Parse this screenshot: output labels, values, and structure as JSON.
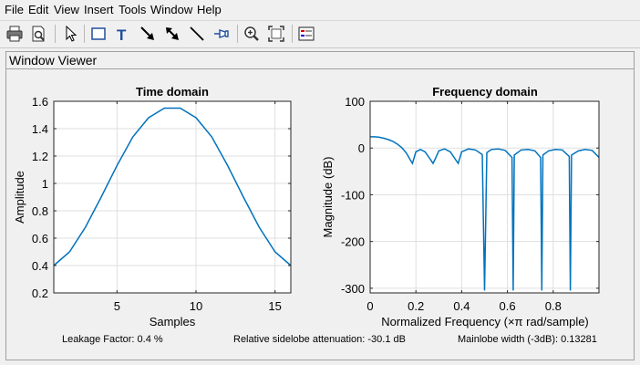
{
  "menu": {
    "items": [
      "File",
      "Edit",
      "View",
      "Insert",
      "Tools",
      "Window",
      "Help"
    ]
  },
  "toolbar": {
    "icons": [
      "print-icon",
      "print-preview-icon",
      "pointer-icon",
      "insert-rectangle-icon",
      "insert-text-icon",
      "insert-arrow-icon",
      "insert-double-arrow-icon",
      "insert-line-icon",
      "pin-icon",
      "zoom-in-icon",
      "fit-view-icon",
      "legend-icon"
    ]
  },
  "panel": {
    "title": "Window Viewer"
  },
  "time_plot": {
    "title": "Time domain",
    "xlabel": "Samples",
    "ylabel": "Amplitude",
    "xticks": [
      "5",
      "10",
      "15"
    ],
    "yticks": [
      "0.2",
      "0.4",
      "0.6",
      "0.8",
      "1",
      "1.2",
      "1.4",
      "1.6"
    ]
  },
  "freq_plot": {
    "title": "Frequency domain",
    "xlabel": "Normalized Frequency  (×π rad/sample)",
    "ylabel": "Magnitude (dB)",
    "xticks": [
      "0",
      "0.2",
      "0.4",
      "0.6",
      "0.8"
    ],
    "yticks": [
      "100",
      "0",
      "-100",
      "-200",
      "-300"
    ]
  },
  "status": {
    "leakage": "Leakage Factor: 0.4 %",
    "sidelobe": "Relative sidelobe attenuation: -30.1 dB",
    "mainlobe": "Mainlobe width (-3dB): 0.13281"
  },
  "colors": {
    "line": "#0072bd",
    "axes_bg": "#ffffff",
    "grid": "#dfdfdf"
  },
  "chart_data": [
    {
      "type": "line",
      "title": "Time domain",
      "xlabel": "Samples",
      "ylabel": "Amplitude",
      "xlim": [
        1,
        16
      ],
      "ylim": [
        0.2,
        1.6
      ],
      "grid": true,
      "x": [
        1,
        2,
        3,
        4,
        5,
        6,
        7,
        8,
        9,
        10,
        11,
        12,
        13,
        14,
        15,
        16
      ],
      "y": [
        0.4,
        0.5,
        0.68,
        0.9,
        1.13,
        1.34,
        1.48,
        1.55,
        1.55,
        1.48,
        1.34,
        1.13,
        0.9,
        0.68,
        0.5,
        0.4
      ]
    },
    {
      "type": "line",
      "title": "Frequency domain",
      "xlabel": "Normalized Frequency  (×π rad/sample)",
      "ylabel": "Magnitude (dB)",
      "xlim": [
        0,
        1
      ],
      "ylim": [
        -310,
        100
      ],
      "grid": true,
      "x": [
        0,
        0.02,
        0.04,
        0.06,
        0.08,
        0.1,
        0.12,
        0.14,
        0.16,
        0.175,
        0.185,
        0.2,
        0.22,
        0.24,
        0.26,
        0.275,
        0.285,
        0.3,
        0.325,
        0.35,
        0.375,
        0.385,
        0.4,
        0.43,
        0.46,
        0.49,
        0.5,
        0.51,
        0.53,
        0.56,
        0.59,
        0.62,
        0.625,
        0.63,
        0.66,
        0.69,
        0.72,
        0.745,
        0.75,
        0.755,
        0.78,
        0.81,
        0.84,
        0.87,
        0.875,
        0.88,
        0.91,
        0.94,
        0.97,
        1.0
      ],
      "y": [
        24,
        24,
        23,
        21,
        18,
        14,
        8,
        0,
        -12,
        -25,
        -33,
        -8,
        -3,
        -8,
        -22,
        -33,
        -23,
        -6,
        -2,
        -8,
        -26,
        -33,
        -8,
        -2,
        -4,
        -14,
        -305,
        -10,
        -3,
        -2,
        -5,
        -20,
        -305,
        -15,
        -4,
        -3,
        -6,
        -20,
        -305,
        -15,
        -6,
        -3,
        -4,
        -18,
        -305,
        -15,
        -6,
        -3,
        -5,
        -20
      ]
    }
  ]
}
